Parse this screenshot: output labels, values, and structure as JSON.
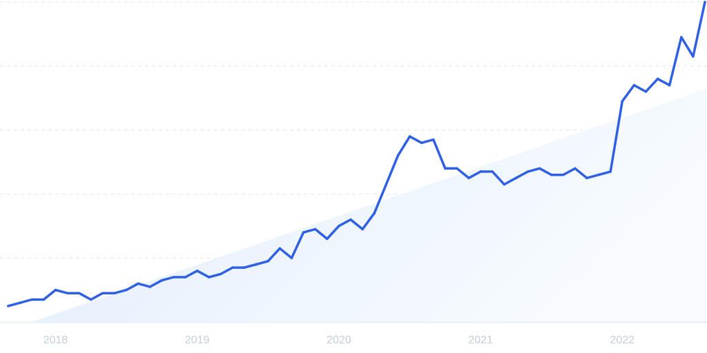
{
  "chart_data": {
    "type": "line",
    "title": "",
    "xlabel": "",
    "ylabel": "",
    "grid": true,
    "legend": "none",
    "ylim": [
      0,
      100
    ],
    "x_tick_labels": [
      "2018",
      "2019",
      "2020",
      "2021",
      "2022"
    ],
    "x_tick_dates": [
      "2018-01",
      "2019-01",
      "2020-01",
      "2021-01",
      "2022-01"
    ],
    "x_range": [
      "2017-09",
      "2022-08"
    ],
    "series": [
      {
        "name": "",
        "color": "#2f5fe3",
        "x": [
          "2017-09",
          "2017-10",
          "2017-11",
          "2017-12",
          "2018-01",
          "2018-02",
          "2018-03",
          "2018-04",
          "2018-05",
          "2018-06",
          "2018-07",
          "2018-08",
          "2018-09",
          "2018-10",
          "2018-11",
          "2018-12",
          "2019-01",
          "2019-02",
          "2019-03",
          "2019-04",
          "2019-05",
          "2019-06",
          "2019-07",
          "2019-08",
          "2019-09",
          "2019-10",
          "2019-11",
          "2019-12",
          "2020-01",
          "2020-02",
          "2020-03",
          "2020-04",
          "2020-05",
          "2020-06",
          "2020-07",
          "2020-08",
          "2020-09",
          "2020-10",
          "2020-11",
          "2020-12",
          "2021-01",
          "2021-02",
          "2021-03",
          "2021-04",
          "2021-05",
          "2021-06",
          "2021-07",
          "2021-08",
          "2021-09",
          "2021-10",
          "2021-11",
          "2021-12",
          "2022-01",
          "2022-02",
          "2022-03",
          "2022-04",
          "2022-05",
          "2022-06",
          "2022-07",
          "2022-08"
        ],
        "values": [
          5,
          6,
          7,
          7,
          10,
          9,
          9,
          7,
          9,
          9,
          10,
          12,
          11,
          13,
          14,
          14,
          16,
          14,
          15,
          17,
          17,
          18,
          19,
          23,
          20,
          28,
          29,
          26,
          30,
          32,
          29,
          34,
          43,
          52,
          58,
          56,
          57,
          48,
          48,
          45,
          47,
          47,
          43,
          45,
          47,
          48,
          46,
          46,
          48,
          45,
          46,
          47,
          69,
          74,
          72,
          76,
          74,
          89,
          83,
          100
        ]
      }
    ],
    "trend": {
      "color": "#e3eefc",
      "start": {
        "x": "2017-11",
        "y": 0
      },
      "end": {
        "x": "2022-08",
        "y": 73
      }
    }
  }
}
